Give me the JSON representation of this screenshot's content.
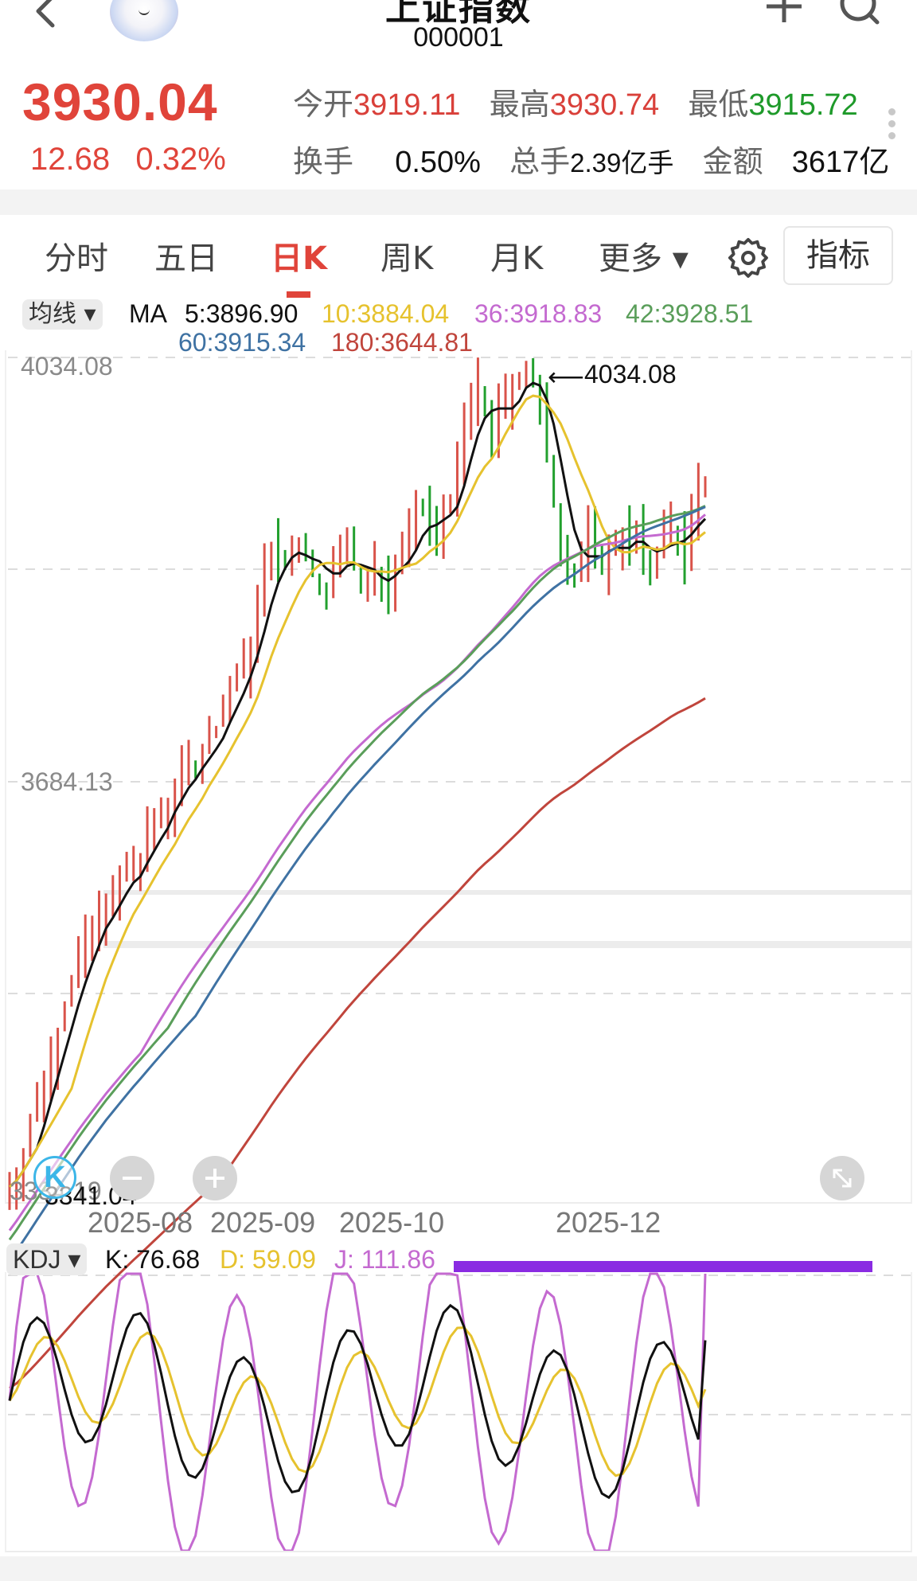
{
  "header": {
    "title": "上证指数",
    "code": "000001",
    "icons": {
      "back": "chevron-left-icon",
      "add": "plus-icon",
      "search": "search-icon",
      "more": "vertical-dots-icon"
    }
  },
  "quote": {
    "price": "3930.04",
    "change": "12.68",
    "change_pct": "0.32%",
    "open_label": "今开",
    "open": "3919.11",
    "high_label": "最高",
    "high": "3930.74",
    "low_label": "最低",
    "low": "3915.72",
    "turnover_label": "换手",
    "turnover": "0.50%",
    "volume_label": "总手",
    "volume": "2.39亿手",
    "amount_label": "金额",
    "amount": "3617亿",
    "colors": {
      "up": "#e0443a",
      "down": "#1e9a2a"
    }
  },
  "tabs": [
    {
      "label": "分时",
      "active": false
    },
    {
      "label": "五日",
      "active": false
    },
    {
      "label": "日K",
      "active": true
    },
    {
      "label": "周K",
      "active": false
    },
    {
      "label": "月K",
      "active": false
    },
    {
      "label": "更多 ▾",
      "active": false
    }
  ],
  "toolbar": {
    "settings_icon": "gear-icon",
    "indicator_label": "指标"
  },
  "ma_legend": {
    "select_label": "均线 ▾",
    "prefix": "MA",
    "items": [
      {
        "label": "5:3896.90",
        "color": "#111111"
      },
      {
        "label": "10:3884.04",
        "color": "#e6c22e"
      },
      {
        "label": "36:3918.83",
        "color": "#c46ad0"
      },
      {
        "label": "42:3928.51",
        "color": "#5a9e5a"
      },
      {
        "label": "60:3915.34",
        "color": "#3f72a3"
      },
      {
        "label": "180:3644.81",
        "color": "#c0453c"
      }
    ]
  },
  "kdj_legend": {
    "select_label": "KDJ ▾",
    "k": "K: 76.68",
    "d": "D: 59.09",
    "j": "J: 111.86",
    "colors": {
      "k": "#111111",
      "d": "#e6c22e",
      "j": "#c46ad0",
      "bar": "#8a2be2"
    }
  },
  "chart_data": {
    "type": "candlestick",
    "title": "上证指数 000001 日K",
    "y_axis": {
      "max_label": "4034.08",
      "mid_label": "3684.13",
      "min_label": "3334.19",
      "ylim": [
        3334.19,
        4034.08
      ]
    },
    "x_axis": {
      "tick_labels": [
        "2025-08",
        "2025-09",
        "2025-10",
        "2025-12"
      ]
    },
    "annotations": {
      "high": "4034.08",
      "low": "3341.04"
    },
    "grid": true,
    "close": [
      3550,
      3560,
      3575,
      3590,
      3585,
      3600,
      3610,
      3620,
      3615,
      3640,
      3650,
      3660,
      3665,
      3680,
      3690,
      3700,
      3695,
      3710,
      3720,
      3730,
      3745,
      3760,
      3770,
      3780,
      3800,
      3830,
      3860,
      3880,
      3870,
      3860,
      3875,
      3880,
      3870,
      3855,
      3850,
      3845,
      3860,
      3870,
      3885,
      3860,
      3840,
      3850,
      3860,
      3855,
      3845,
      3860,
      3880,
      3890,
      3900,
      3905,
      3895,
      3890,
      3910,
      3920,
      3940,
      3980,
      4000,
      4010,
      3990,
      3970,
      3990,
      4000,
      4010,
      4020,
      4025,
      4010,
      3990,
      3950,
      3920,
      3880,
      3860,
      3850,
      3870,
      3890,
      3880,
      3860,
      3870,
      3885,
      3890,
      3880,
      3885,
      3870,
      3860,
      3875,
      3890,
      3900,
      3880,
      3870,
      3900,
      3925,
      3930
    ],
    "series": [
      {
        "name": "MA5",
        "color": "#111111",
        "last": 3896.9
      },
      {
        "name": "MA10",
        "color": "#e6c22e",
        "last": 3884.04
      },
      {
        "name": "MA36",
        "color": "#c46ad0",
        "last": 3918.83
      },
      {
        "name": "MA42",
        "color": "#5a9e5a",
        "last": 3928.51
      },
      {
        "name": "MA60",
        "color": "#3f72a3",
        "last": 3915.34
      },
      {
        "name": "MA180",
        "color": "#c0453c",
        "last": 3644.81
      }
    ],
    "kdj": {
      "K": 76.68,
      "D": 59.09,
      "J": 111.86
    }
  }
}
